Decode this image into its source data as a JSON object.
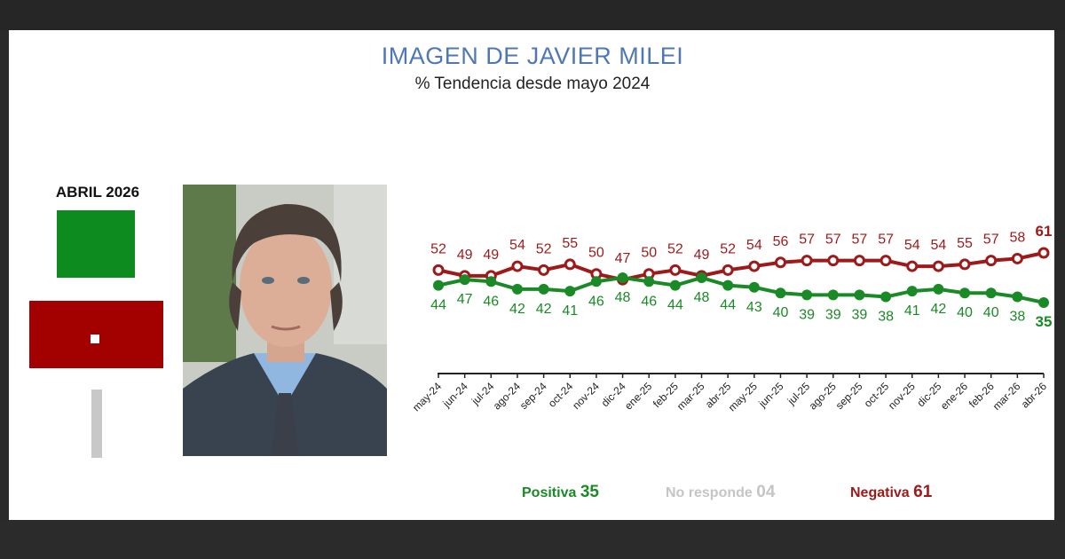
{
  "header": {
    "title": "IMAGEN DE JAVIER MILEI",
    "subtitle": "% Tendencia desde mayo 2024"
  },
  "summary": {
    "month_label": "ABRIL 2026",
    "positiva": {
      "label": "Positiva",
      "value": "35",
      "color": "#0e8b1e"
    },
    "no_responde": {
      "label": "No responde",
      "value": "04",
      "color": "#c8c8c8"
    },
    "negativa": {
      "label": "Negativa",
      "value": "61",
      "color": "#a30000"
    }
  },
  "chart_data": {
    "type": "line",
    "x": [
      "may-24",
      "jun-24",
      "jul-24",
      "ago-24",
      "sep-24",
      "oct-24",
      "nov-24",
      "dic-24",
      "ene-25",
      "feb-25",
      "mar-25",
      "abr-25",
      "may-25",
      "jun-25",
      "jul-25",
      "ago-25",
      "sep-25",
      "oct-25",
      "nov-25",
      "dic-25",
      "ene-26",
      "feb-26",
      "mar-26",
      "abr-26"
    ],
    "series": [
      {
        "name": "Negativa",
        "color": "#9e1a1a",
        "values": [
          52,
          49,
          49,
          54,
          52,
          55,
          50,
          47,
          50,
          52,
          49,
          52,
          54,
          56,
          57,
          57,
          57,
          57,
          54,
          54,
          55,
          57,
          58,
          61
        ]
      },
      {
        "name": "Positiva",
        "color": "#1a8a26",
        "values": [
          44,
          47,
          46,
          42,
          42,
          41,
          46,
          48,
          46,
          44,
          48,
          44,
          43,
          40,
          39,
          39,
          39,
          38,
          41,
          42,
          40,
          40,
          38,
          35
        ]
      }
    ]
  }
}
